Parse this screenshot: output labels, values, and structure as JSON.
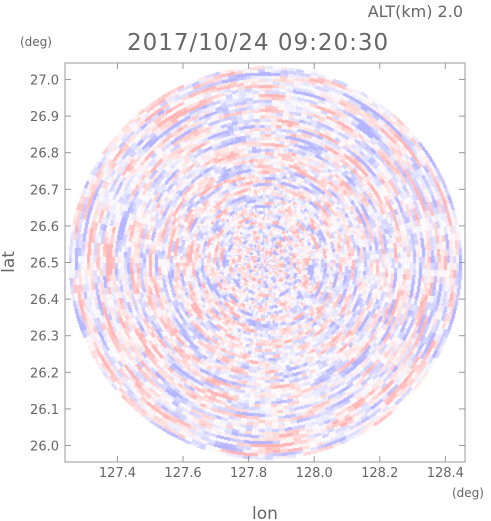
{
  "header": {
    "altitude": "ALT(km) 2.0",
    "timestamp": "2017/10/24 09:20:30"
  },
  "chart_data": {
    "type": "heatmap",
    "title": "2017/10/24 09:20:30",
    "subtitle": "ALT(km) 2.0",
    "xlabel": "lon",
    "ylabel": "lat",
    "x_unit": "(deg)",
    "y_unit": "(deg)",
    "xlim": [
      127.24,
      128.46
    ],
    "ylim": [
      25.955,
      27.045
    ],
    "x_ticks": [
      "127.4",
      "127.6",
      "127.8",
      "128.0",
      "128.2",
      "128.4"
    ],
    "y_ticks": [
      "26.0",
      "26.1",
      "26.2",
      "26.3",
      "26.4",
      "26.5",
      "26.6",
      "26.7",
      "26.8",
      "26.9",
      "27.0"
    ],
    "radar_center": {
      "lon": 127.85,
      "lat": 26.5
    },
    "radar_range_deg_lon": 0.6,
    "color_scheme": {
      "positive": "#f26b6b",
      "negative": "#6b6bf2",
      "neutral": "#ffffff"
    },
    "grid": false,
    "legend": "none"
  }
}
